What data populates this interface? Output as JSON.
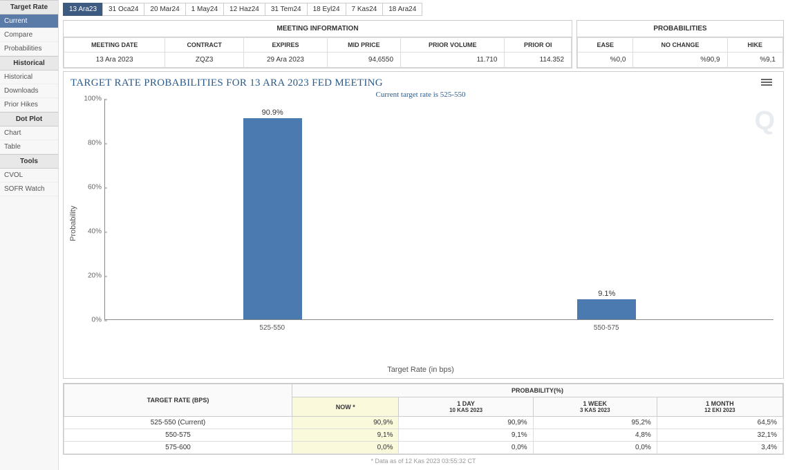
{
  "sidebar": {
    "sections": [
      {
        "title": "Target Rate",
        "items": [
          {
            "label": "Current",
            "active": true
          },
          {
            "label": "Compare",
            "active": false
          },
          {
            "label": "Probabilities",
            "active": false
          }
        ]
      },
      {
        "title": "Historical",
        "items": [
          {
            "label": "Historical",
            "active": false
          },
          {
            "label": "Downloads",
            "active": false
          },
          {
            "label": "Prior Hikes",
            "active": false
          }
        ]
      },
      {
        "title": "Dot Plot",
        "items": [
          {
            "label": "Chart",
            "active": false
          },
          {
            "label": "Table",
            "active": false
          }
        ]
      },
      {
        "title": "Tools",
        "items": [
          {
            "label": "CVOL",
            "active": false
          },
          {
            "label": "SOFR Watch",
            "active": false
          }
        ]
      }
    ]
  },
  "tabs": [
    "13 Ara23",
    "31 Oca24",
    "20 Mar24",
    "1 May24",
    "12 Haz24",
    "31 Tem24",
    "18 Eyl24",
    "7 Kas24",
    "18 Ara24"
  ],
  "active_tab": 0,
  "meeting_info": {
    "title": "MEETING INFORMATION",
    "headers": [
      "MEETING DATE",
      "CONTRACT",
      "EXPIRES",
      "MID PRICE",
      "PRIOR VOLUME",
      "PRIOR OI"
    ],
    "row": [
      "13 Ara 2023",
      "ZQZ3",
      "29 Ara 2023",
      "94,6550",
      "11.710",
      "114.352"
    ],
    "right_align": [
      false,
      false,
      false,
      true,
      true,
      true
    ]
  },
  "probabilities": {
    "title": "PROBABILITIES",
    "headers": [
      "EASE",
      "NO CHANGE",
      "HIKE"
    ],
    "row": [
      "%0,0",
      "%90,9",
      "%9,1"
    ]
  },
  "chart": {
    "title": "TARGET RATE PROBABILITIES FOR 13 ARA 2023 FED MEETING",
    "subtitle": "Current target rate is 525-550",
    "ylabel": "Probability",
    "xlabel": "Target Rate (in bps)",
    "ylim": [
      0,
      100
    ],
    "yticks": [
      0,
      20,
      40,
      60,
      80,
      100
    ],
    "ytick_suffix": "%",
    "bar_color": "#4a7ab0",
    "bars": [
      {
        "category": "525-550",
        "value": 90.9,
        "label": "90.9%",
        "xpos_pct": 25
      },
      {
        "category": "550-575",
        "value": 9.1,
        "label": "9.1%",
        "xpos_pct": 75
      }
    ],
    "watermark": "Q"
  },
  "bottom": {
    "rate_header": "TARGET RATE (BPS)",
    "prob_header": "PROBABILITY(%)",
    "cols": [
      {
        "main": "NOW *",
        "sub": ""
      },
      {
        "main": "1 DAY",
        "sub": "10 KAS 2023"
      },
      {
        "main": "1 WEEK",
        "sub": "3 KAS 2023"
      },
      {
        "main": "1 MONTH",
        "sub": "12 EKI 2023"
      }
    ],
    "rows": [
      {
        "label": "525-550 (Current)",
        "vals": [
          "90,9%",
          "90,9%",
          "95,2%",
          "64,5%"
        ]
      },
      {
        "label": "550-575",
        "vals": [
          "9,1%",
          "9,1%",
          "4,8%",
          "32,1%"
        ]
      },
      {
        "label": "575-600",
        "vals": [
          "0,0%",
          "0,0%",
          "0,0%",
          "3,4%"
        ]
      }
    ]
  },
  "footer": "* Data as of 12 Kas 2023 03:55:32 CT"
}
